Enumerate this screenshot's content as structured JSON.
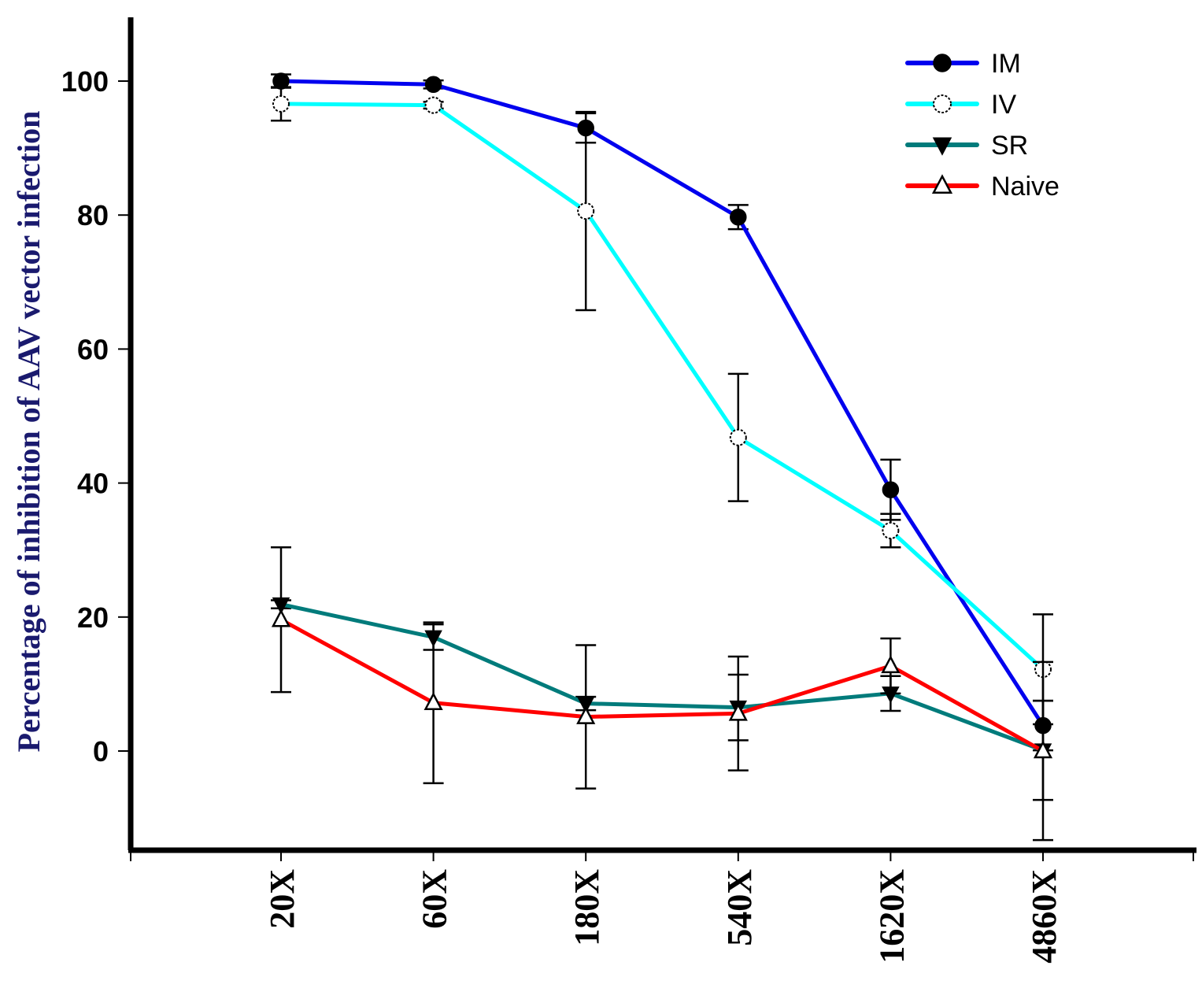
{
  "chart_data": {
    "type": "line",
    "title": "",
    "xlabel": "",
    "ylabel": "Percentage of inhibition of AAV vector infection",
    "categories": [
      "20X",
      "60X",
      "180X",
      "540X",
      "1620X",
      "4860X"
    ],
    "ylim": [
      -15,
      110
    ],
    "yticks": [
      0,
      20,
      40,
      60,
      80,
      100
    ],
    "yticklabels": [
      "0",
      "20",
      "40",
      "60",
      "80",
      "100"
    ],
    "grid": false,
    "legend_position": "top-right",
    "series": [
      {
        "name": "IM",
        "color": "#0000ee",
        "marker": "filled-circle",
        "values": [
          100,
          99.5,
          93,
          79.7,
          39,
          3.8
        ],
        "errors": [
          1.0,
          0.6,
          2.2,
          1.8,
          4.5,
          3.7
        ]
      },
      {
        "name": "IV",
        "color": "#00ffff",
        "marker": "open-circle",
        "values": [
          96.6,
          96.4,
          80.6,
          46.8,
          32.9,
          12.2
        ],
        "errors": [
          2.5,
          0.5,
          14.8,
          9.5,
          2.5,
          8.2
        ]
      },
      {
        "name": "SR",
        "color": "#007b7b",
        "marker": "filled-triangle-down",
        "values": [
          21.9,
          17,
          7.1,
          6.5,
          8.6,
          0.1
        ],
        "errors": [
          0.6,
          1.9,
          1.0,
          4.9,
          2.6,
          7.4
        ]
      },
      {
        "name": "Naive",
        "color": "#ff0000",
        "marker": "open-triangle-up",
        "values": [
          19.6,
          7.2,
          5.1,
          5.6,
          12.7,
          0
        ],
        "errors": [
          10.8,
          12.0,
          10.7,
          8.5,
          4.1,
          13.3
        ]
      }
    ]
  }
}
